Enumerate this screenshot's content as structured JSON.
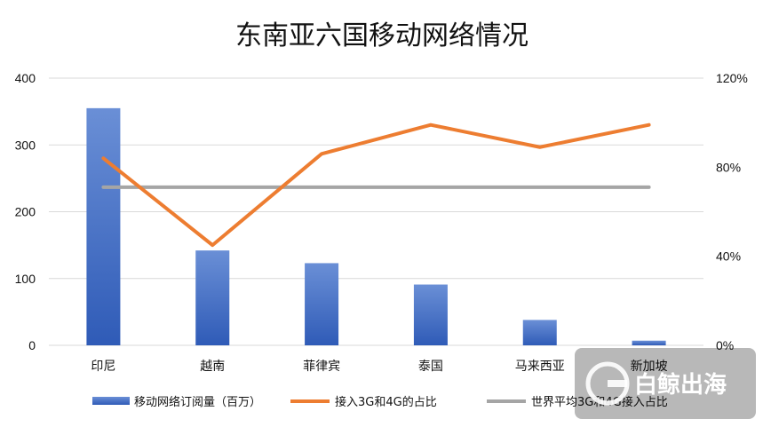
{
  "chart_data": {
    "type": "bar",
    "title": "东南亚六国移动网络情况",
    "categories": [
      "印尼",
      "越南",
      "菲律宾",
      "泰国",
      "马来西亚",
      "新加坡"
    ],
    "series": [
      {
        "name": "移动网络订阅量（百万）",
        "type": "bar",
        "axis": "left",
        "color": "#4472c4",
        "values": [
          355,
          142,
          123,
          91,
          38,
          7
        ]
      },
      {
        "name": "接入3G和4G的占比",
        "type": "line",
        "axis": "right",
        "color": "#ed7d31",
        "values": [
          0.84,
          0.45,
          0.86,
          0.99,
          0.89,
          0.99
        ]
      },
      {
        "name": "世界平均3G和4G接入占比",
        "type": "line",
        "axis": "right",
        "color": "#a5a5a5",
        "values": [
          0.71,
          0.71,
          0.71,
          0.71,
          0.71,
          0.71
        ]
      }
    ],
    "y_left": {
      "min": 0,
      "max": 400,
      "ticks": [
        0,
        100,
        200,
        300,
        400
      ]
    },
    "y_right": {
      "min": 0,
      "max": 1.2,
      "ticks": [
        0,
        0.4,
        0.8,
        1.2
      ],
      "tick_labels": [
        "0%",
        "40%",
        "80%",
        "120%"
      ]
    },
    "grid": true,
    "legend": "bottom"
  },
  "watermark": {
    "text": "白鲸出海"
  }
}
